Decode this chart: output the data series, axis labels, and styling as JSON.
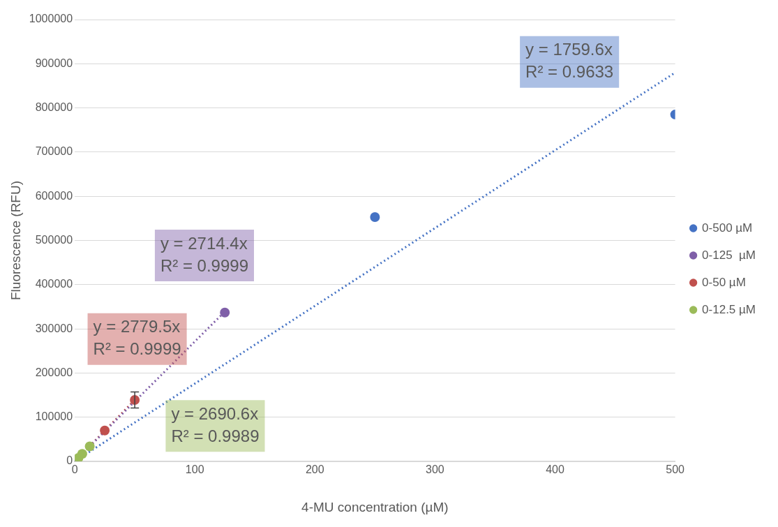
{
  "chart_data": {
    "type": "scatter",
    "xlabel": "4-MU concentration (µM)",
    "ylabel": "Fluorescence (RFU)",
    "xlim": [
      0,
      500
    ],
    "xticks": [
      0,
      100,
      200,
      300,
      400,
      500
    ],
    "ylim": [
      0,
      1000000
    ],
    "yticks": [
      0,
      100000,
      200000,
      300000,
      400000,
      500000,
      600000,
      700000,
      800000,
      900000,
      1000000
    ],
    "grid": "y",
    "legend": "right",
    "marker": "circle",
    "series": [
      {
        "name": "0-500 µM",
        "color": "#4472c4",
        "x": [
          250,
          500
        ],
        "values": [
          553000,
          785000
        ]
      },
      {
        "name": "0-125  µM",
        "color": "#7f5fa8",
        "x": [
          125
        ],
        "values": [
          337000
        ]
      },
      {
        "name": "0-50 µM",
        "color": "#c0504d",
        "x": [
          25,
          50
        ],
        "values": [
          70000,
          139000
        ],
        "errors": [
          null,
          18000
        ]
      },
      {
        "name": "0-12.5 µM",
        "color": "#9bbb59",
        "x": [
          3.125,
          6.25,
          12.5
        ],
        "values": [
          8000,
          17000,
          34000
        ]
      },
      {
        "type": "line",
        "color": "#4472c4",
        "line_style": "dotted",
        "marker": "none",
        "x": [
          0,
          500
        ],
        "values": [
          0,
          880000
        ]
      },
      {
        "type": "line",
        "color": "#7f5fa8",
        "line_style": "dotted",
        "marker": "none",
        "x": [
          0,
          125
        ],
        "values": [
          0,
          339000
        ]
      },
      {
        "type": "line",
        "color": "#c0504d",
        "line_style": "dotted",
        "marker": "none",
        "x": [
          0,
          50
        ],
        "values": [
          0,
          139000
        ]
      }
    ],
    "annotations": [
      "y = 1759.6x\nR² = 0.9633",
      "y = 2714.4x\nR² = 0.9999",
      "y = 2779.5x\nR² = 0.9999",
      "y = 2690.6x\nR² = 0.9989"
    ]
  }
}
